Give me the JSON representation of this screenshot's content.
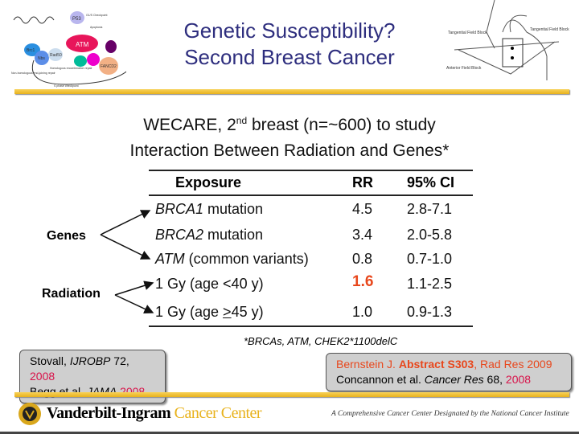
{
  "header": {
    "title_line1": "Genetic Susceptibility?",
    "title_line2": "Second Breast Cancer",
    "left_image": {
      "labels": [
        "ATM",
        "P53",
        "Brc1",
        "Nbs",
        "Rad50",
        "FANCD2",
        "G1/S Checkpoint",
        "Apoptosis",
        "Non-homologous end-joining repair",
        "Homologous recombination repair",
        "S phase checkpoint"
      ]
    },
    "right_image": {
      "labels": [
        "Tangential Field Block",
        "Tangential Field Block",
        "Anterior Field Block"
      ]
    }
  },
  "subtitle": {
    "line1_pre": "WECARE, 2",
    "line1_sup": "nd",
    "line1_post": " breast (n=~600) to study",
    "line2": "Interaction Between Radiation and Genes*"
  },
  "table": {
    "headers": [
      "Exposure",
      "RR",
      "95% CI"
    ],
    "rows": [
      {
        "gene": "BRCA1",
        "label": " mutation",
        "rr": "4.5",
        "ci": "2.8-7.1"
      },
      {
        "gene": "BRCA2",
        "label": " mutation",
        "rr": "3.4",
        "ci": "2.0-5.8"
      },
      {
        "gene": "ATM",
        "label": " (common variants)",
        "rr": "0.8",
        "ci": "0.7-1.0"
      },
      {
        "label": "1 Gy (age <40 y)",
        "rr": "1.6",
        "ci": "1.1-2.5"
      },
      {
        "label_pre": "1 Gy (age ",
        "label_u": ">",
        "label_post": "45 y)",
        "rr": "1.0",
        "ci": "0.9-1.3"
      }
    ],
    "groups": {
      "genes": "Genes",
      "radiation": "Radiation"
    },
    "footnote": "*BRCAs, ATM, CHEK2*1100delC",
    "highlight_color": "#e8471c"
  },
  "refs": {
    "left": {
      "l1a": "Stovall, ",
      "l1b": "IJROBP",
      "l1c": " 72, ",
      "l1d": "2008",
      "l2a": "Begg et al, ",
      "l2b": "JAMA",
      "l2c": "2008"
    },
    "right": {
      "l1a": "Bernstein J. ",
      "l1b": "Abstract S303",
      "l1c": ", Rad Res 2009",
      "l2a": "Concannon et al. ",
      "l2b": "Cancer Res",
      "l2c": " 68, ",
      "l2d": "2008"
    }
  },
  "footer": {
    "logo_a": "Vanderbilt-Ingram",
    "logo_b": "Cancer Center",
    "tagline": "A Comprehensive Cancer Center Designated by the National Cancer Institute"
  }
}
